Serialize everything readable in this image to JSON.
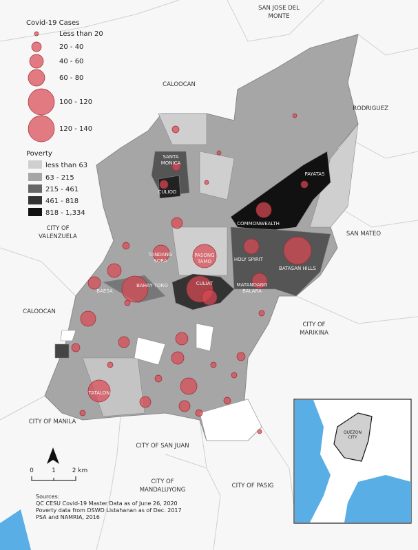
{
  "legend": {
    "covid": {
      "title": "Covid-19 Cases",
      "items": [
        "Less than 20",
        "20 - 40",
        "40 - 60",
        "60 - 80",
        "100 - 120",
        "120 - 140"
      ]
    },
    "poverty": {
      "title": "Poverty",
      "items": [
        "less than 63",
        "63 - 215",
        "215 - 461",
        "461 - 818",
        "818 - 1,334"
      ]
    }
  },
  "places": [
    "SAN JOSE DEL",
    "MONTE",
    "CALOOCAN",
    "RODRIGUEZ",
    "CITY OF",
    "VALENZUELA",
    "SAN MATEO",
    "CALOOCAN",
    "CITY OF",
    "MARIKINA",
    "CITY OF MANILA",
    "CITY OF SAN JUAN",
    "CITY OF",
    "MANDALUYONG",
    "CITY OF PASIG"
  ],
  "districts": [
    "SANTA",
    "MONICA",
    "CULIOD",
    "PAYATAS",
    "COMMONWEALTH",
    "TANDANG",
    "SORA",
    "PASONG",
    "TAMO",
    "HOLY SPIRIT",
    "BATASAN HILLS",
    "BAESA",
    "BAHAY TORO",
    "CULIAT",
    "MATANDANG",
    "BALARA",
    "TATALON"
  ],
  "scale": [
    "0",
    "1",
    "2 km"
  ],
  "inset": [
    "QUEZON",
    "CITY"
  ],
  "sources": [
    "Sources:",
    "QC CESU Covid-19 Master Data as of June 26, 2020",
    "Poverty data from DSWD Listahanan as of Dec. 2017",
    "PSA and NAMRIA, 2016"
  ]
}
